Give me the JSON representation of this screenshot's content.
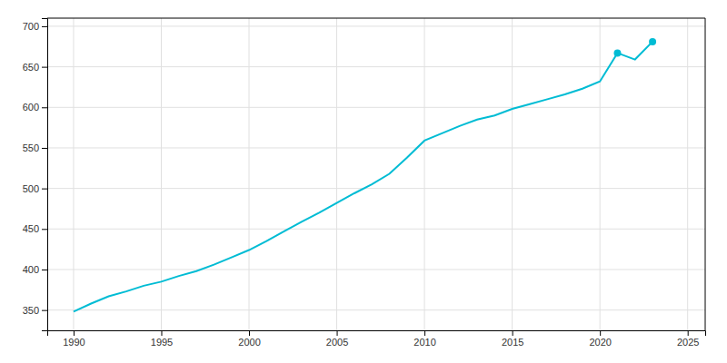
{
  "chart_data": {
    "type": "line",
    "x": [
      1990,
      1991,
      1992,
      1993,
      1994,
      1995,
      1996,
      1997,
      1998,
      1999,
      2000,
      2001,
      2002,
      2003,
      2004,
      2005,
      2006,
      2007,
      2008,
      2009,
      2010,
      2011,
      2012,
      2013,
      2014,
      2015,
      2016,
      2017,
      2018,
      2019,
      2020,
      2021,
      2022,
      2023
    ],
    "series": [
      {
        "color": "#00bcd4",
        "values": [
          348,
          358,
          367,
          373,
          380,
          385,
          392,
          398,
          406,
          415,
          424,
          435,
          447,
          459,
          470,
          482,
          494,
          505,
          518,
          538,
          559,
          568,
          577,
          585,
          590,
          598,
          604,
          610,
          616,
          623,
          632,
          667,
          659,
          681
        ]
      },
      {
        "type": "scatter",
        "marker": "circle",
        "color": "#00bcd4",
        "x": [
          2021,
          2023
        ],
        "values": [
          667,
          681
        ]
      }
    ],
    "xlim": [
      1988.5,
      2026
    ],
    "ylim": [
      325,
      710
    ],
    "xticks": [
      1990,
      1995,
      2000,
      2005,
      2010,
      2015,
      2020,
      2025
    ],
    "yticks": [
      350,
      400,
      450,
      500,
      550,
      600,
      650,
      700
    ],
    "grid": true
  }
}
